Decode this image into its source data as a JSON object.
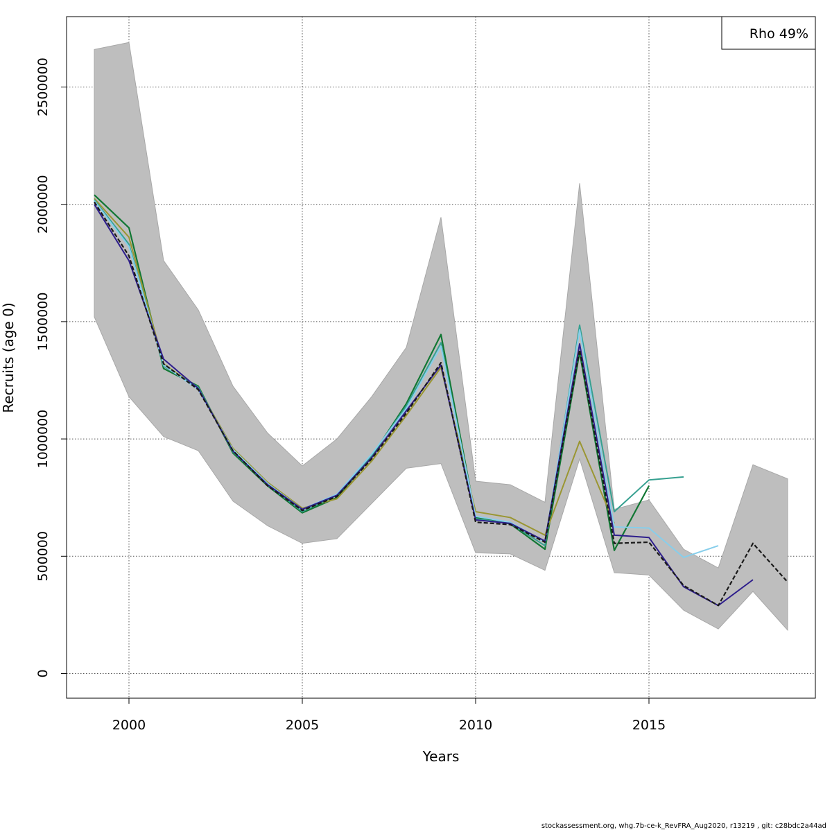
{
  "chart_data": {
    "type": "line",
    "xlabel": "Years",
    "ylabel": "Recruits (age 0)",
    "xlim": [
      1998.2,
      2019.8
    ],
    "ylim": [
      -105000,
      2800000
    ],
    "x_ticks": [
      2000,
      2005,
      2010,
      2015
    ],
    "y_ticks": [
      0,
      500000,
      1000000,
      1500000,
      2000000,
      2500000
    ],
    "x_tick_labels": [
      "2000",
      "2005",
      "2010",
      "2015"
    ],
    "y_tick_labels": [
      "0",
      "500000",
      "1000000",
      "1500000",
      "2000000",
      "2500000"
    ],
    "grid": true,
    "legend": {
      "text": "Rho 49%",
      "position": "top-right"
    },
    "confidence_band": {
      "color": "#bebebe",
      "x": [
        1999,
        2000,
        2001,
        2002,
        2003,
        2004,
        2005,
        2006,
        2007,
        2008,
        2009,
        2010,
        2011,
        2012,
        2013,
        2014,
        2015,
        2016,
        2017,
        2018,
        2019
      ],
      "lower": [
        1520000,
        1180000,
        1010000,
        950000,
        735000,
        630000,
        555000,
        575000,
        725000,
        875000,
        895000,
        515000,
        510000,
        440000,
        915000,
        430000,
        420000,
        270000,
        190000,
        350000,
        185000
      ],
      "upper": [
        2660000,
        2690000,
        1760000,
        1550000,
        1225000,
        1025000,
        885000,
        1000000,
        1180000,
        1390000,
        1945000,
        820000,
        805000,
        730000,
        2090000,
        700000,
        740000,
        530000,
        450000,
        890000,
        830000
      ]
    },
    "series": [
      {
        "color": "#1a1a1a",
        "dash": "6,3",
        "width": 2.2,
        "x": [
          1999,
          2000,
          2001,
          2002,
          2003,
          2004,
          2005,
          2006,
          2007,
          2008,
          2009,
          2010,
          2011,
          2012,
          2013,
          2014,
          2015,
          2016,
          2017,
          2018,
          2019
        ],
        "values": [
          2010000,
          1780000,
          1320000,
          1210000,
          950000,
          800000,
          695000,
          755000,
          915000,
          1110000,
          1325000,
          645000,
          635000,
          560000,
          1380000,
          555000,
          560000,
          375000,
          290000,
          555000,
          390000
        ]
      },
      {
        "color": "#2e1e8c",
        "dash": "",
        "width": 2,
        "x": [
          1999,
          2000,
          2001,
          2002,
          2003,
          2004,
          2005,
          2006,
          2007,
          2008,
          2009,
          2010,
          2011,
          2012,
          2013,
          2014,
          2015,
          2016,
          2017,
          2018
        ],
        "values": [
          2000000,
          1760000,
          1340000,
          1215000,
          948000,
          805000,
          700000,
          760000,
          920000,
          1120000,
          1315000,
          655000,
          640000,
          565000,
          1405000,
          590000,
          580000,
          370000,
          290000,
          400000
        ]
      },
      {
        "color": "#87ceeb",
        "dash": "",
        "width": 2,
        "x": [
          1999,
          2000,
          2001,
          2002,
          2003,
          2004,
          2005,
          2006,
          2007,
          2008,
          2009,
          2010,
          2011,
          2012,
          2013,
          2014,
          2015,
          2016,
          2017
        ],
        "values": [
          2015000,
          1820000,
          1315000,
          1210000,
          955000,
          810000,
          700000,
          765000,
          935000,
          1130000,
          1395000,
          670000,
          645000,
          560000,
          1465000,
          625000,
          620000,
          495000,
          545000
        ]
      },
      {
        "color": "#36a090",
        "dash": "",
        "width": 2,
        "x": [
          1999,
          2000,
          2001,
          2002,
          2003,
          2004,
          2005,
          2006,
          2007,
          2008,
          2009,
          2010,
          2011,
          2012,
          2013,
          2014,
          2015,
          2016
        ],
        "values": [
          2020000,
          1830000,
          1310000,
          1220000,
          945000,
          805000,
          690000,
          760000,
          930000,
          1140000,
          1410000,
          660000,
          640000,
          545000,
          1485000,
          690000,
          825000,
          838000
        ]
      },
      {
        "color": "#9a9632",
        "dash": "",
        "width": 2,
        "x": [
          1999,
          2000,
          2001,
          2002,
          2003,
          2004,
          2005,
          2006,
          2007,
          2008,
          2009,
          2010,
          2011,
          2012,
          2013,
          2014
        ],
        "values": [
          2025000,
          1860000,
          1320000,
          1215000,
          960000,
          815000,
          705000,
          745000,
          905000,
          1100000,
          1305000,
          690000,
          665000,
          590000,
          990000,
          640000
        ]
      },
      {
        "color": "#117733",
        "dash": "",
        "width": 2.2,
        "x": [
          1999,
          2000,
          2001,
          2002,
          2003,
          2004,
          2005,
          2006,
          2007,
          2008,
          2009,
          2010,
          2011,
          2012,
          2013,
          2014,
          2015
        ],
        "values": [
          2040000,
          1900000,
          1300000,
          1225000,
          940000,
          800000,
          685000,
          750000,
          925000,
          1150000,
          1445000,
          665000,
          638000,
          530000,
          1370000,
          525000,
          800000
        ]
      }
    ]
  },
  "footer": "stockassessment.org, whg.7b-ce-k_RevFRA_Aug2020, r13219 , git: c28bdc2a44ad"
}
